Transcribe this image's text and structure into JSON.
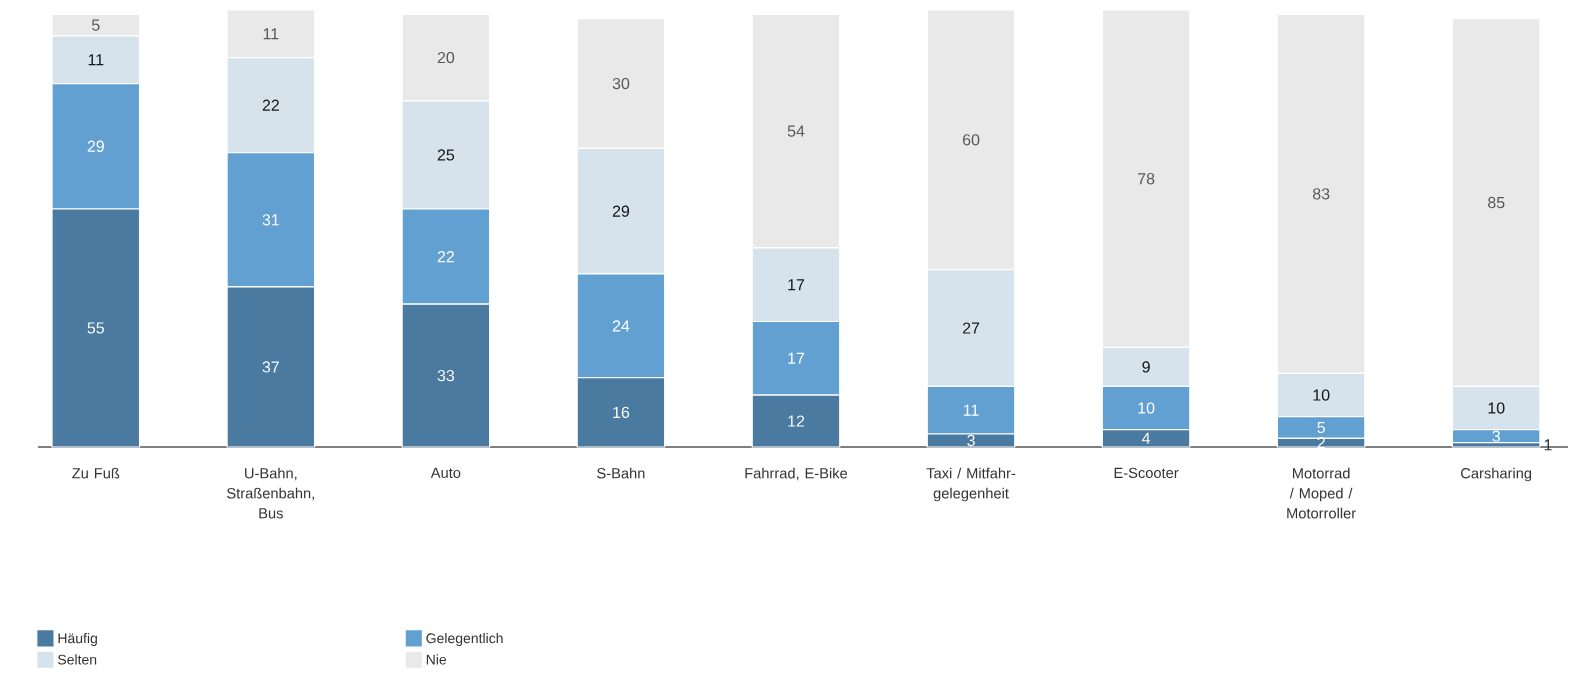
{
  "chart_data": {
    "type": "bar",
    "stacked": true,
    "data_labels": true,
    "legend": "bottom left",
    "categories": [
      "Zu Fuß",
      "U-Bahn, Straßenbahn, Bus",
      "Auto",
      "S-Bahn",
      "Fahrrad, E-Bike",
      "Taxi / Mitfahr-gelegenheit",
      "E-Scooter",
      "Motorrad / Moped / Motorroller",
      "Carsharing"
    ],
    "series": [
      {
        "name": "Häufig",
        "color": "#4a7aa0",
        "values": [
          55,
          37,
          33,
          16,
          12,
          3,
          4,
          2,
          1
        ]
      },
      {
        "name": "Gelegentlich",
        "color": "#63a0d2",
        "values": [
          29,
          31,
          22,
          24,
          17,
          11,
          10,
          5,
          3
        ]
      },
      {
        "name": "Selten",
        "color": "#d6e3ec",
        "values": [
          11,
          22,
          25,
          29,
          17,
          27,
          9,
          10,
          10
        ]
      },
      {
        "name": "Nie",
        "color": "#e9e9e9",
        "values": [
          5,
          11,
          20,
          30,
          54,
          60,
          78,
          83,
          85
        ]
      }
    ]
  }
}
